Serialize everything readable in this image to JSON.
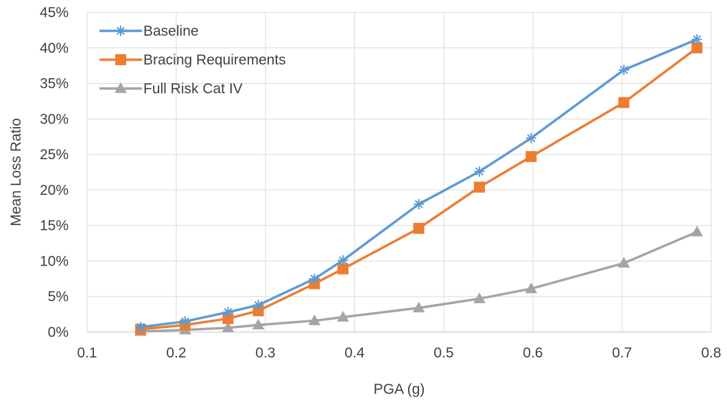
{
  "chart_data": {
    "type": "line",
    "title": "",
    "xlabel": "PGA (g)",
    "ylabel": "Mean Loss Ratio",
    "xlim": [
      0.1,
      0.8
    ],
    "ylim": [
      0,
      45
    ],
    "x_ticks": [
      0.1,
      0.2,
      0.3,
      0.4,
      0.5,
      0.6,
      0.7,
      0.8
    ],
    "x_tick_labels": [
      "0.1",
      "0.2",
      "0.3",
      "0.4",
      "0.5",
      "0.6",
      "0.7",
      "0.8"
    ],
    "y_ticks": [
      0,
      5,
      10,
      15,
      20,
      25,
      30,
      35,
      40,
      45
    ],
    "y_tick_labels": [
      "0%",
      "5%",
      "10%",
      "15%",
      "20%",
      "25%",
      "30%",
      "35%",
      "40%",
      "45%"
    ],
    "grid": "vertical and horizontal",
    "legend_position": "top-left",
    "x": [
      0.16,
      0.21,
      0.258,
      0.292,
      0.355,
      0.387,
      0.472,
      0.54,
      0.598,
      0.702,
      0.784
    ],
    "series": [
      {
        "name": "Baseline",
        "color": "#5B9BD5",
        "marker": "asterisk",
        "values": [
          0.7,
          1.5,
          2.8,
          3.8,
          7.5,
          10.1,
          18.0,
          22.6,
          27.3,
          36.9,
          41.2
        ]
      },
      {
        "name": "Bracing Requirements",
        "color": "#ED7D31",
        "marker": "square",
        "values": [
          0.4,
          1.0,
          1.9,
          3.0,
          6.8,
          8.9,
          14.6,
          20.4,
          24.7,
          32.3,
          40.0
        ]
      },
      {
        "name": "Full Risk Cat IV",
        "color": "#A5A5A5",
        "marker": "triangle",
        "values": [
          0.1,
          0.3,
          0.6,
          1.0,
          1.6,
          2.1,
          3.4,
          4.7,
          6.1,
          9.7,
          14.1
        ]
      }
    ]
  }
}
